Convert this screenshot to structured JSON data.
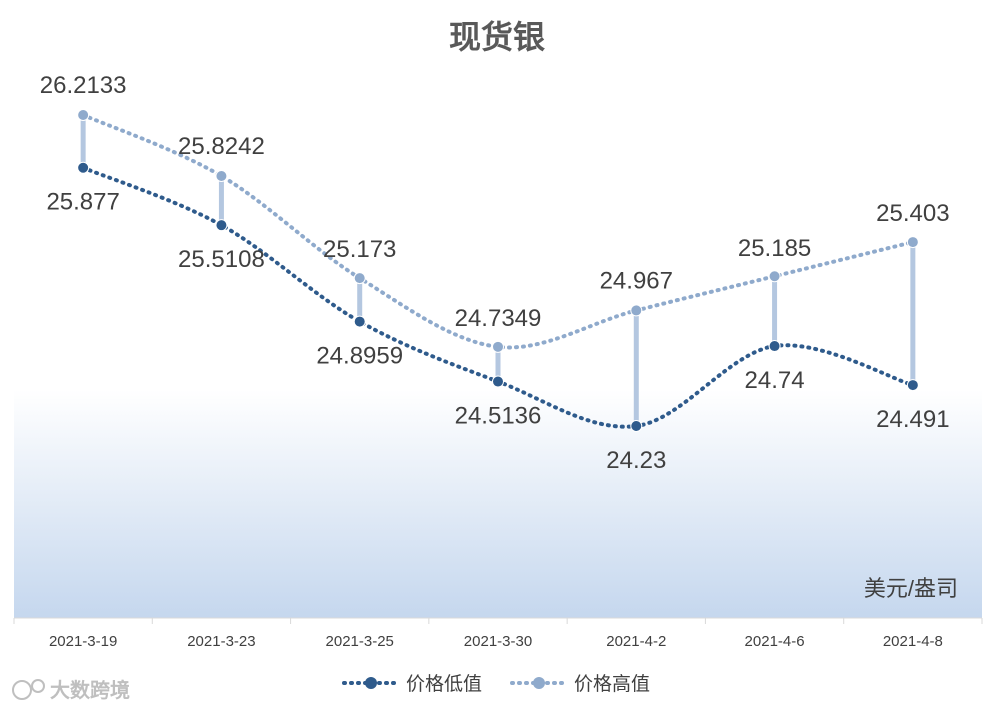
{
  "chart_data": {
    "type": "line",
    "title": "现货银",
    "unit": "美元/盎司",
    "categories": [
      "2021-3-19",
      "2021-3-23",
      "2021-3-25",
      "2021-3-30",
      "2021-4-2",
      "2021-4-6",
      "2021-4-8"
    ],
    "series": [
      {
        "name": "价格低值",
        "values": [
          25.877,
          25.5108,
          24.8959,
          24.5136,
          24.23,
          24.74,
          24.491
        ],
        "color": "#2f5b8c"
      },
      {
        "name": "价格高值",
        "values": [
          26.2133,
          25.8242,
          25.173,
          24.7349,
          24.967,
          25.185,
          25.403
        ],
        "color": "#8faacc"
      }
    ],
    "value_labels": {
      "low": [
        "25.877",
        "25.5108",
        "24.8959",
        "24.5136",
        "24.23",
        "24.74",
        "24.491"
      ],
      "high": [
        "26.2133",
        "25.8242",
        "25.173",
        "24.7349",
        "24.967",
        "25.185",
        "25.403"
      ]
    },
    "legend_position": "bottom",
    "grid": false,
    "smooth": true,
    "high_low_lines": true,
    "background": "gradient white to light blue"
  },
  "watermark": "大数跨境"
}
